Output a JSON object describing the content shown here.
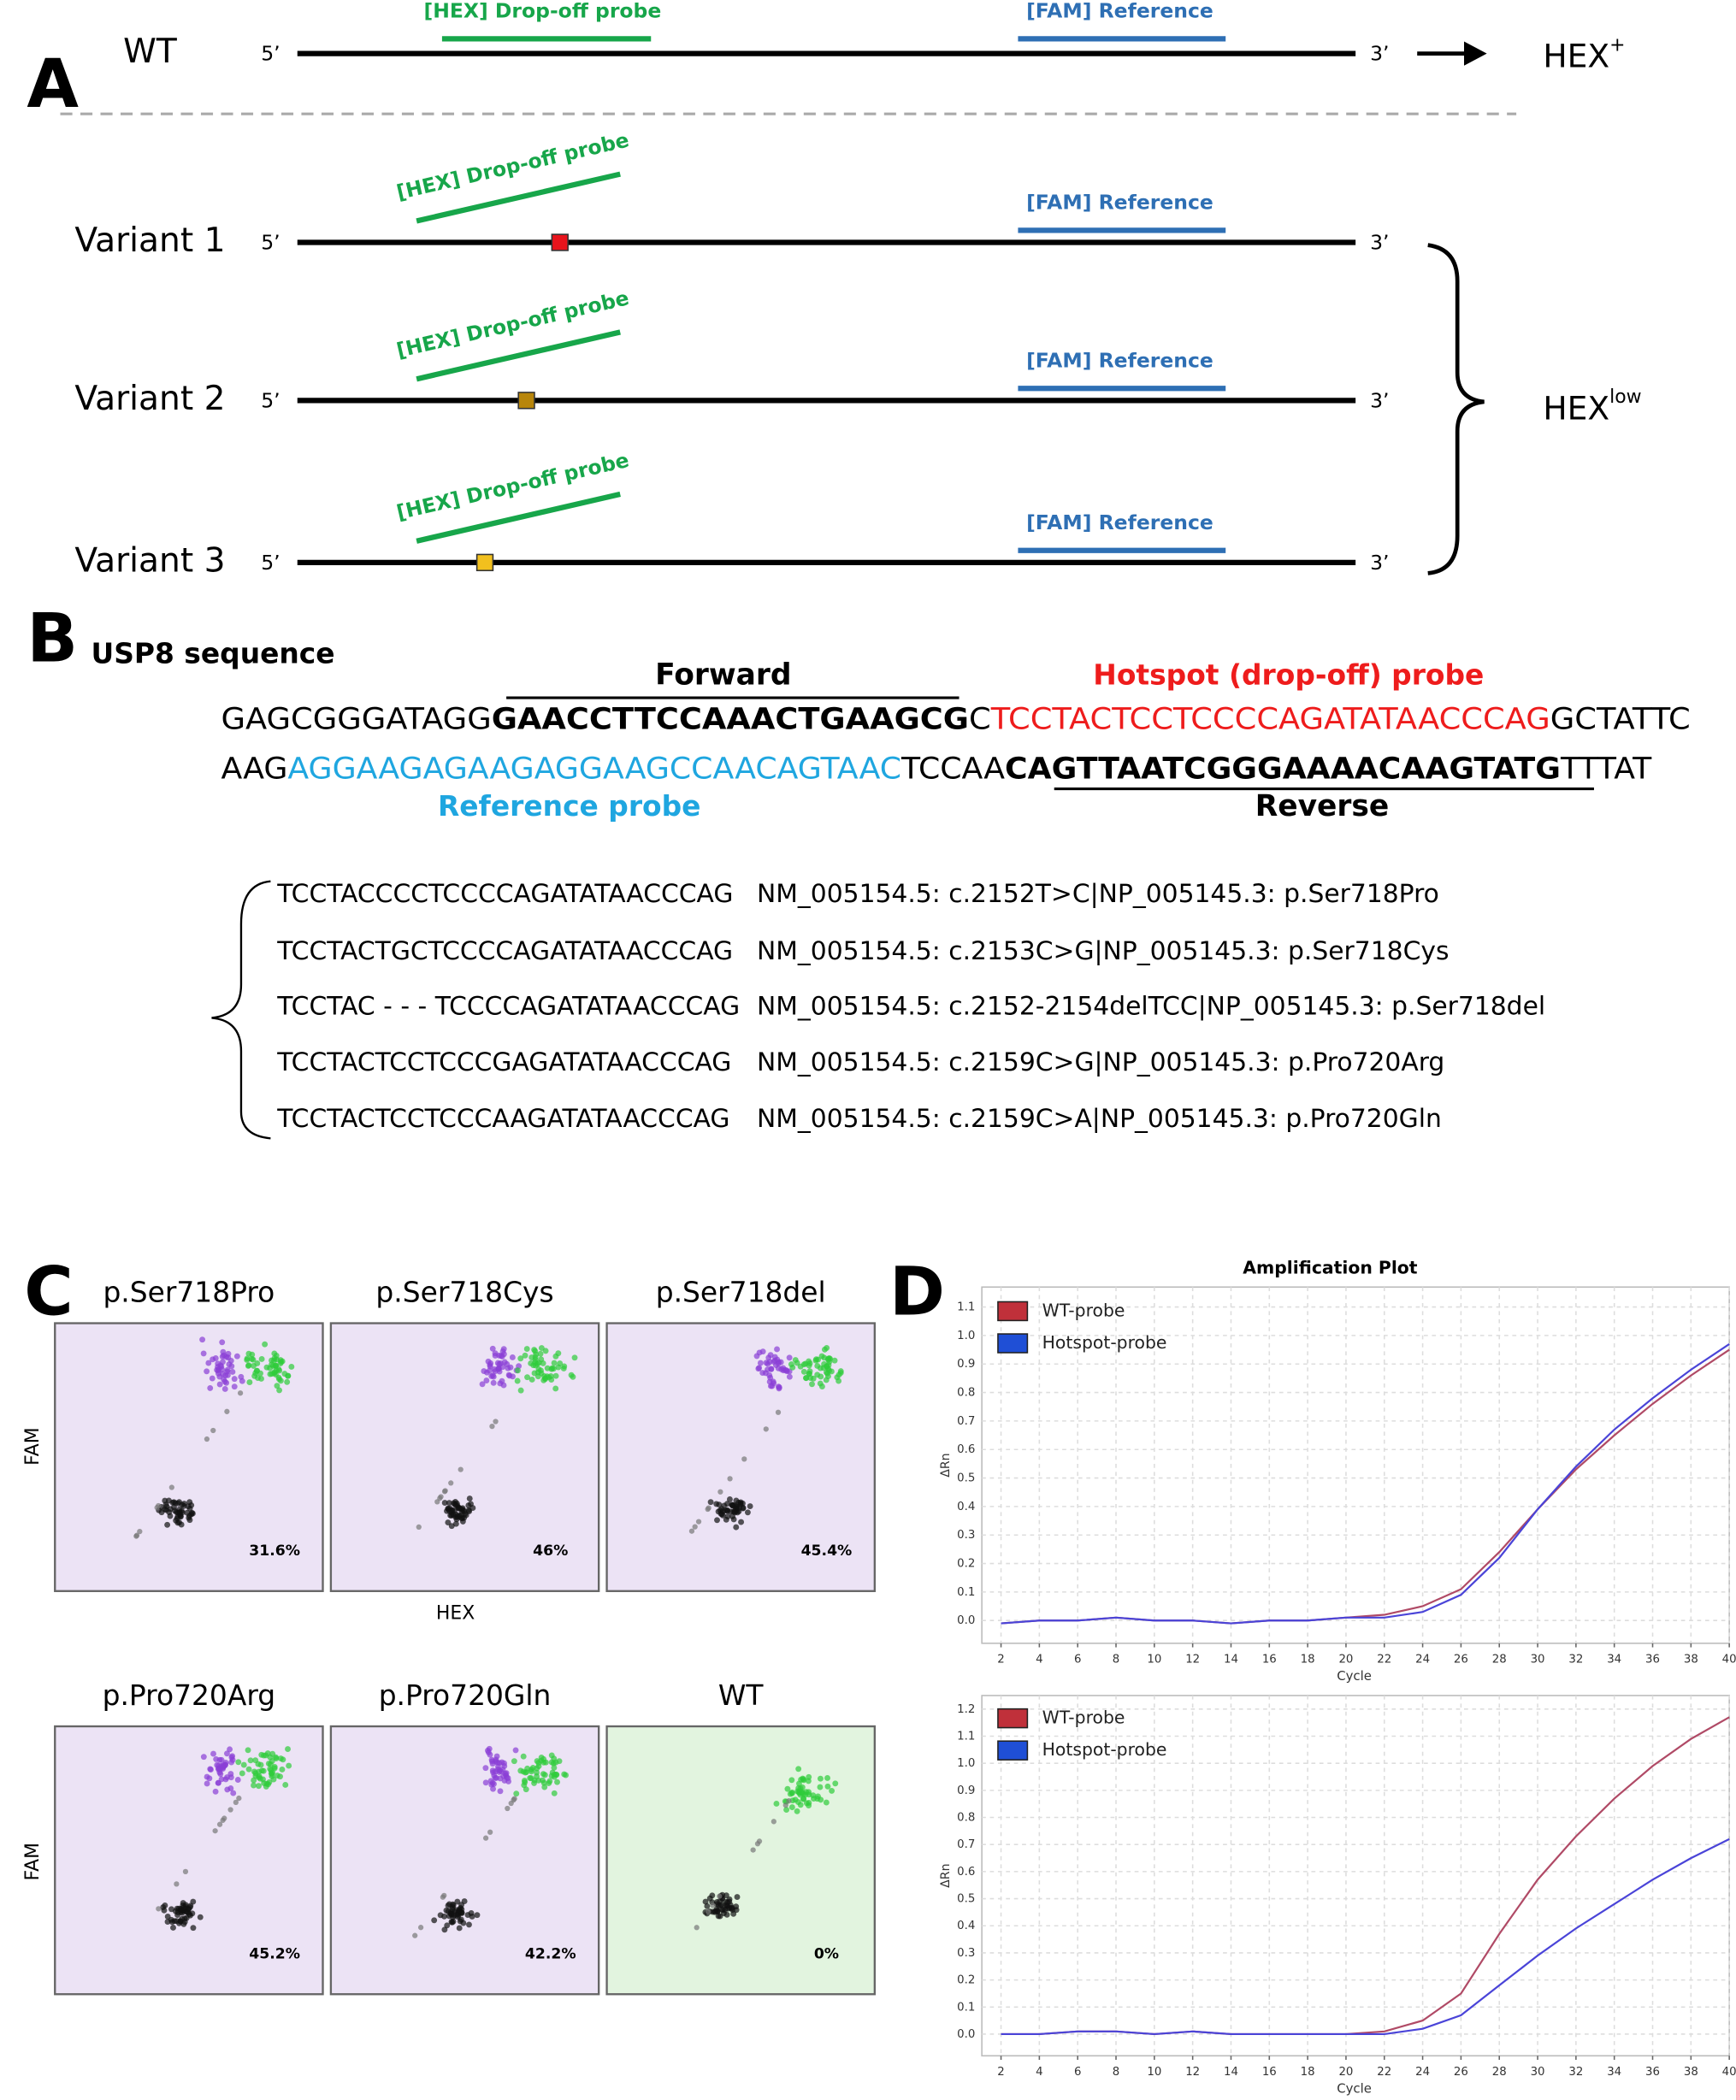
{
  "panel_a": {
    "label": "A",
    "rows": [
      {
        "name": "WT",
        "five": "5’",
        "three": "3’",
        "hex": "[HEX] Drop-off probe",
        "fam": "[FAM] Reference"
      },
      {
        "name": "Variant 1",
        "five": "5’",
        "three": "3’",
        "hex": "[HEX] Drop-off probe",
        "fam": "[FAM] Reference",
        "mark_color": "#e8141c"
      },
      {
        "name": "Variant 2",
        "five": "5’",
        "three": "3’",
        "hex": "[HEX] Drop-off probe",
        "fam": "[FAM] Reference",
        "mark_color": "#b8860b"
      },
      {
        "name": "Variant 3",
        "five": "5’",
        "three": "3’",
        "hex": "[HEX] Drop-off probe",
        "fam": "[FAM] Reference",
        "mark_color": "#f2c01e"
      }
    ],
    "wt_result": {
      "text": "HEX",
      "sup": "+"
    },
    "variant_result": {
      "text": "HEX",
      "sup": "low"
    }
  },
  "panel_b": {
    "label": "B",
    "title": "USP8 sequence",
    "forward": "Forward",
    "hotspot": "Hotspot (drop-off) probe",
    "reference": "Reference probe",
    "reverse": "Reverse",
    "line1": [
      "GAGCGGGATAGG",
      "GAACCTTCCAAACTGAAGCG",
      "C",
      "TCCTACTCCTCCCCAGATATAACCCAG",
      "GCTATTC"
    ],
    "line2": [
      "AAG",
      "AGGAAGAGAAGAGGAAGCCAACAGTAAC",
      "TCCAA",
      "CAGTTAATCGGGAAAACAAGTATG",
      "TTTAT"
    ],
    "variants": [
      [
        "TCCTACCCCTCCCCAGATATAACCCAG",
        "NM_005154.5: c.2152T>C|NP_005145.3: p.Ser718Pro"
      ],
      [
        "TCCTACTGCTCCCCAGATATAACCCAG",
        "NM_005154.5: c.2153C>G|NP_005145.3: p.Ser718Cys"
      ],
      [
        "TCCTAC - - - TCCCCAGATATAACCCAG",
        "NM_005154.5: c.2152-2154delTCC|NP_005145.3: p.Ser718del"
      ],
      [
        "TCCTACTCCTCCCGAGATATAACCCAG",
        "NM_005154.5: c.2159C>G|NP_005145.3: p.Pro720Arg"
      ],
      [
        "TCCTACTCCTCCCAAGATATAACCCAG",
        "NM_005154.5: c.2159C>A|NP_005145.3: p.Pro720Gln"
      ]
    ]
  },
  "panel_c": {
    "label": "C",
    "y_label": "FAM",
    "x_label": "HEX",
    "plots": [
      {
        "title": "p.Ser718Pro",
        "pct": "31.6%"
      },
      {
        "title": "p.Ser718Cys",
        "pct": "46%"
      },
      {
        "title": "p.Ser718del",
        "pct": "45.4%"
      },
      {
        "title": "p.Pro720Arg",
        "pct": "45.2%"
      },
      {
        "title": "p.Pro720Gln",
        "pct": "42.2%"
      },
      {
        "title": "WT",
        "pct": "0%",
        "background": "#e2f4df"
      }
    ]
  },
  "panel_d": {
    "label": "D"
  },
  "chart_data": [
    {
      "type": "line",
      "title": "Amplification Plot",
      "x_label": "Cycle",
      "y_label": "ΔRn",
      "grid": true,
      "x": [
        2,
        4,
        6,
        8,
        10,
        12,
        14,
        16,
        18,
        20,
        22,
        24,
        26,
        28,
        30,
        32,
        34,
        36,
        38,
        40
      ],
      "xlim": [
        1,
        40
      ],
      "xticks": [
        2,
        4,
        6,
        8,
        10,
        12,
        14,
        16,
        18,
        20,
        22,
        24,
        26,
        28,
        30,
        32,
        34,
        36,
        38,
        40
      ],
      "ylim": [
        -0.08,
        1.17
      ],
      "yticks": [
        {
          "value": 0,
          "label": "0.0"
        },
        {
          "value": 0.1,
          "label": "0.1"
        },
        {
          "value": 0.2,
          "label": "0.2"
        },
        {
          "value": 0.3,
          "label": "0.3"
        },
        {
          "value": 0.4,
          "label": "0.4"
        },
        {
          "value": 0.5,
          "label": "0.5"
        },
        {
          "value": 0.6,
          "label": "0.6"
        },
        {
          "value": 0.7,
          "label": "0.7"
        },
        {
          "value": 0.8,
          "label": "0.8"
        },
        {
          "value": 0.9,
          "label": "0.9"
        },
        {
          "value": 1,
          "label": "1.0"
        },
        {
          "value": 1.1,
          "label": "1.1"
        }
      ],
      "series": [
        {
          "name": "WT-probe",
          "color": "#c0303a",
          "line_color": "#b04a66",
          "values": [
            -0.01,
            0,
            0,
            0.01,
            0,
            0,
            -0.01,
            0,
            0,
            0.01,
            0.02,
            0.05,
            0.11,
            0.24,
            0.39,
            0.53,
            0.65,
            0.76,
            0.86,
            0.95
          ]
        },
        {
          "name": "Hotspot-probe",
          "color": "#1f4fd6",
          "line_color": "#4a44d8",
          "values": [
            -0.01,
            0,
            0,
            0.01,
            0,
            0,
            -0.01,
            0,
            0,
            0.01,
            0.01,
            0.03,
            0.09,
            0.22,
            0.39,
            0.54,
            0.67,
            0.78,
            0.88,
            0.97
          ]
        }
      ]
    },
    {
      "type": "line",
      "x_label": "Cycle",
      "y_label": "ΔRn",
      "grid": true,
      "x": [
        2,
        4,
        6,
        8,
        10,
        12,
        14,
        16,
        18,
        20,
        22,
        24,
        26,
        28,
        30,
        32,
        34,
        36,
        38,
        40
      ],
      "xlim": [
        1,
        40
      ],
      "xticks": [
        2,
        4,
        6,
        8,
        10,
        12,
        14,
        16,
        18,
        20,
        22,
        24,
        26,
        28,
        30,
        32,
        34,
        36,
        38,
        40
      ],
      "ylim": [
        -0.08,
        1.25
      ],
      "yticks": [
        {
          "value": 0,
          "label": "0.0"
        },
        {
          "value": 0.1,
          "label": "0.1"
        },
        {
          "value": 0.2,
          "label": "0.2"
        },
        {
          "value": 0.3,
          "label": "0.3"
        },
        {
          "value": 0.4,
          "label": "0.4"
        },
        {
          "value": 0.5,
          "label": "0.5"
        },
        {
          "value": 0.6,
          "label": "0.6"
        },
        {
          "value": 0.7,
          "label": "0.7"
        },
        {
          "value": 0.8,
          "label": "0.8"
        },
        {
          "value": 0.9,
          "label": "0.9"
        },
        {
          "value": 1,
          "label": "1.0"
        },
        {
          "value": 1.1,
          "label": "1.1"
        },
        {
          "value": 1.2,
          "label": "1.2"
        }
      ],
      "series": [
        {
          "name": "WT-probe",
          "color": "#c0303a",
          "line_color": "#b04a66",
          "values": [
            0,
            0,
            0.01,
            0.01,
            0,
            0.01,
            0,
            0,
            0,
            0,
            0.01,
            0.05,
            0.15,
            0.37,
            0.57,
            0.73,
            0.87,
            0.99,
            1.09,
            1.17
          ]
        },
        {
          "name": "Hotspot-probe",
          "color": "#1f4fd6",
          "line_color": "#4a44d8",
          "values": [
            0,
            0,
            0.01,
            0.01,
            0,
            0.01,
            0,
            0,
            0,
            0,
            0,
            0.02,
            0.07,
            0.18,
            0.29,
            0.39,
            0.48,
            0.57,
            0.65,
            0.72
          ]
        }
      ]
    }
  ]
}
